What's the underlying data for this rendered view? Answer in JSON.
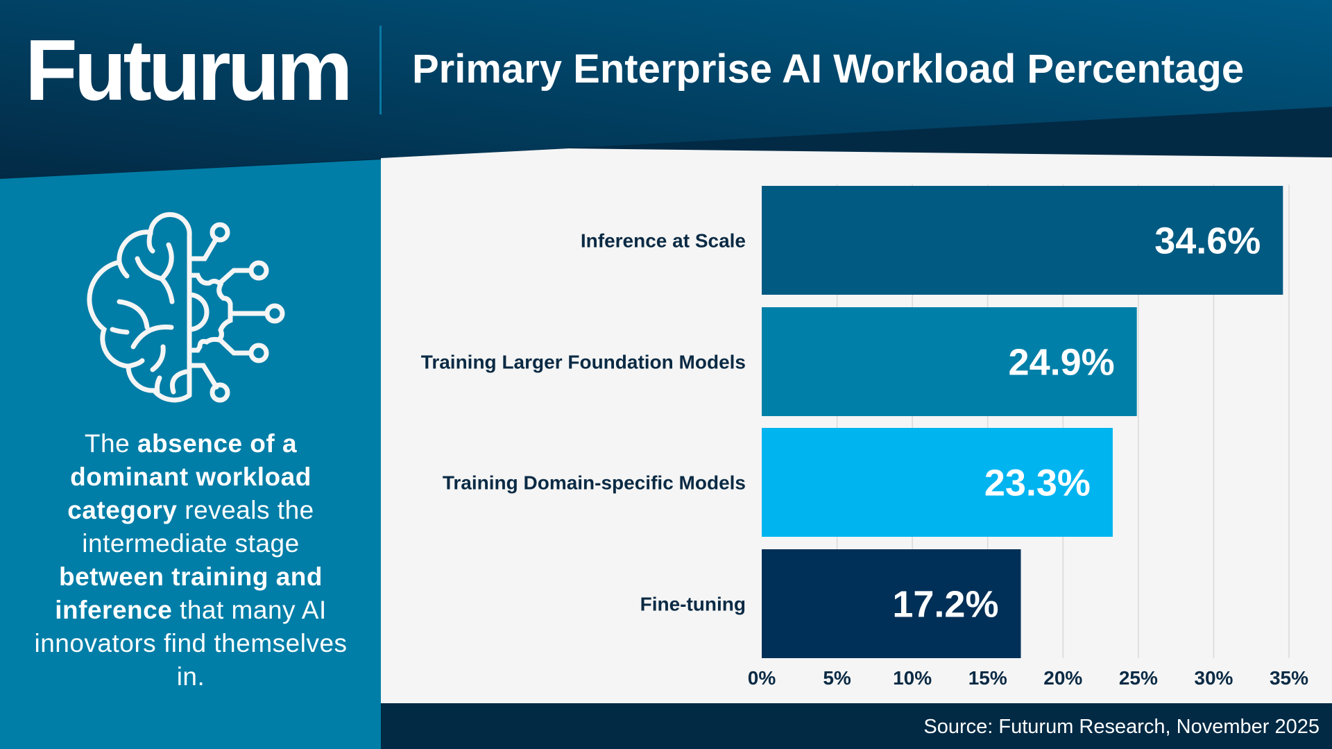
{
  "header": {
    "logo": "Futurum",
    "title": "Primary Enterprise AI Workload Percentage"
  },
  "sidebar": {
    "icon": "brain-circuit-icon",
    "text_parts": [
      {
        "t": "The ",
        "b": false
      },
      {
        "t": "absence of a dominant workload category",
        "b": true
      },
      {
        "t": " reveals the intermediate stage ",
        "b": false
      },
      {
        "t": "between training and inference",
        "b": true
      },
      {
        "t": " that many AI innovators find themselves in.",
        "b": false
      }
    ]
  },
  "colors": {
    "header_dark": "#022a45",
    "header_light": "#005a85",
    "sidebar": "#007ea7",
    "chart_bg": "#f5f5f5"
  },
  "chart_data": {
    "type": "bar",
    "orientation": "horizontal",
    "title": "Primary Enterprise AI Workload Percentage",
    "categories": [
      "Inference at Scale",
      "Training Larger Foundation Models",
      "Training Domain-specific Models",
      "Fine-tuning"
    ],
    "values": [
      34.6,
      24.9,
      23.3,
      17.2
    ],
    "data_labels": [
      "34.6%",
      "24.9%",
      "23.3%",
      "17.2%"
    ],
    "bar_colors": [
      "#005a82",
      "#0080a8",
      "#00b4f0",
      "#003057"
    ],
    "xlim": [
      0,
      35
    ],
    "x_ticks": [
      0,
      5,
      10,
      15,
      20,
      25,
      30,
      35
    ],
    "x_tick_labels": [
      "0%",
      "5%",
      "10%",
      "15%",
      "20%",
      "25%",
      "30%",
      "35%"
    ],
    "grid": true,
    "xlabel": "",
    "ylabel": ""
  },
  "footer": {
    "source": "Source: Futurum Research, November 2025"
  }
}
